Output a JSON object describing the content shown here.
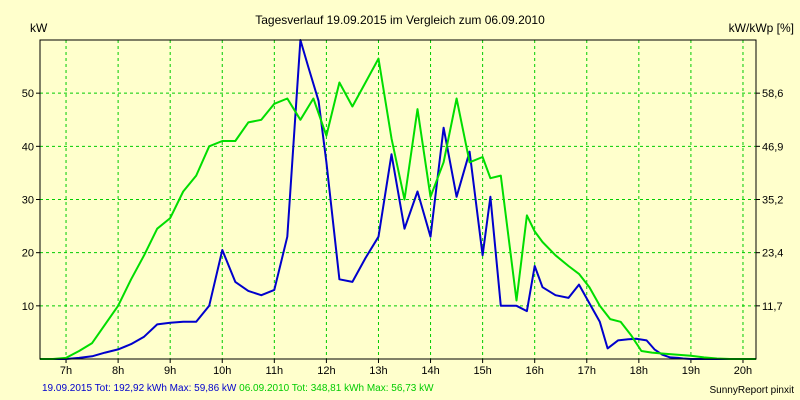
{
  "chart_data": {
    "type": "line",
    "title": "Tagesverlauf 19.09.2015 im Vergleich zum 06.09.2010",
    "ylabel_left": "kW",
    "ylabel_right": "kW/kWp [%]",
    "x_ticks": [
      "7h",
      "8h",
      "9h",
      "10h",
      "11h",
      "12h",
      "13h",
      "14h",
      "15h",
      "16h",
      "17h",
      "18h",
      "19h",
      "20h"
    ],
    "x_range": [
      6.5,
      20.25
    ],
    "ylim": [
      0,
      60
    ],
    "y_ticks": [
      10,
      20,
      30,
      40,
      50
    ],
    "y_right_ticks": [
      "11,7",
      "23,4",
      "35,2",
      "46,9",
      "58,6"
    ],
    "grid": true,
    "series": [
      {
        "name": "19.09.2015",
        "color": "#0000cc",
        "x": [
          6.5,
          7.0,
          7.25,
          7.5,
          7.75,
          8.0,
          8.25,
          8.5,
          8.75,
          9.0,
          9.25,
          9.5,
          9.75,
          10.0,
          10.25,
          10.5,
          10.75,
          11.0,
          11.25,
          11.5,
          11.65,
          11.85,
          12.0,
          12.25,
          12.5,
          12.75,
          13.0,
          13.25,
          13.5,
          13.75,
          14.0,
          14.25,
          14.5,
          14.75,
          15.0,
          15.15,
          15.35,
          15.65,
          15.85,
          16.0,
          16.15,
          16.4,
          16.65,
          16.85,
          17.05,
          17.25,
          17.4,
          17.6,
          17.8,
          17.95,
          18.15,
          18.3,
          18.45,
          18.6,
          18.75,
          18.85,
          19.0,
          19.25,
          19.5,
          19.75,
          20.0,
          20.25
        ],
        "values": [
          0,
          0,
          0.2,
          0.5,
          1.2,
          1.8,
          2.8,
          4.2,
          6.5,
          6.8,
          7.0,
          7.0,
          10.0,
          20.5,
          14.5,
          12.8,
          12.0,
          13.0,
          23.0,
          60.0,
          55.0,
          48.5,
          37.0,
          15.0,
          14.5,
          19.0,
          23.0,
          38.5,
          24.5,
          31.5,
          23.0,
          43.5,
          30.5,
          39.0,
          19.5,
          30.5,
          10.0,
          10.0,
          9.0,
          17.5,
          13.5,
          12.0,
          11.5,
          14.0,
          10.5,
          7.0,
          2.0,
          3.5,
          3.7,
          3.8,
          3.5,
          1.8,
          0.8,
          0.3,
          0.2,
          0.1,
          0,
          0,
          0,
          0,
          0,
          0
        ]
      },
      {
        "name": "06.09.2010",
        "color": "#00dd00",
        "x": [
          6.5,
          6.75,
          7.0,
          7.25,
          7.5,
          7.75,
          8.0,
          8.25,
          8.5,
          8.75,
          9.0,
          9.25,
          9.5,
          9.75,
          10.0,
          10.25,
          10.5,
          10.75,
          11.0,
          11.25,
          11.5,
          11.75,
          12.0,
          12.25,
          12.5,
          12.75,
          13.0,
          13.25,
          13.5,
          13.75,
          14.0,
          14.25,
          14.5,
          14.75,
          15.0,
          15.15,
          15.35,
          15.65,
          15.85,
          16.0,
          16.15,
          16.4,
          16.65,
          16.85,
          17.05,
          17.25,
          17.45,
          17.65,
          17.85,
          18.05,
          18.25,
          18.5,
          18.75,
          19.0,
          19.25,
          19.5,
          19.75,
          20.0,
          20.25
        ],
        "values": [
          0,
          0,
          0.2,
          1.5,
          3.0,
          6.5,
          10.0,
          15.0,
          19.5,
          24.5,
          26.5,
          31.5,
          34.5,
          40.0,
          41.0,
          41.0,
          44.5,
          45.0,
          48.0,
          49.0,
          45.0,
          49.0,
          42.0,
          52.0,
          47.5,
          52.0,
          56.5,
          41.5,
          30.0,
          47.0,
          30.5,
          37.0,
          49.0,
          37.0,
          38.0,
          34.0,
          34.5,
          11.0,
          27.0,
          24.0,
          22.0,
          19.5,
          17.5,
          16.0,
          13.5,
          10.0,
          7.5,
          7.0,
          4.5,
          1.5,
          1.2,
          1.0,
          0.8,
          0.6,
          0.3,
          0.1,
          0,
          0,
          0
        ]
      }
    ]
  },
  "footer": {
    "series1_label": "19.09.2015 Tot: 192,92 kWh Max: 59,86 kW",
    "series2_label": "06.09.2010 Tot: 348,81 kWh Max: 56,73 kW",
    "credit": "SunnyReport pinxit"
  }
}
